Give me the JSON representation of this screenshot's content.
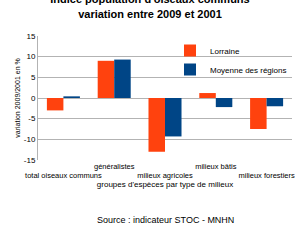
{
  "chart_data": {
    "type": "bar",
    "title": "Indice population d'oiseaux communs",
    "subtitle": "variation entre 2009 et 2001",
    "x_label": "groupes d'espèces par type de milieux",
    "y_label": "variation 2009/2001 en %",
    "annotations": [
      "Source : indicateur STOC - MNHN"
    ],
    "categories": [
      "total oiseaux communs",
      "généralistes",
      "milieux agricoles",
      "milieux bâtis",
      "milieux forestiers"
    ],
    "series": [
      {
        "name": "Lorraine",
        "color": "#ff420e",
        "values": [
          -3,
          9,
          -13,
          1.2,
          -7.5
        ]
      },
      {
        "name": "Moyenne des régions",
        "color": "#004586",
        "values": [
          0.4,
          9.3,
          -9.3,
          -2.2,
          -2
        ]
      }
    ],
    "ylim": [
      -15,
      15
    ],
    "yticks": [
      -15,
      -10,
      -5,
      0,
      5,
      10,
      15
    ],
    "grid": true,
    "legend": "top-right"
  }
}
